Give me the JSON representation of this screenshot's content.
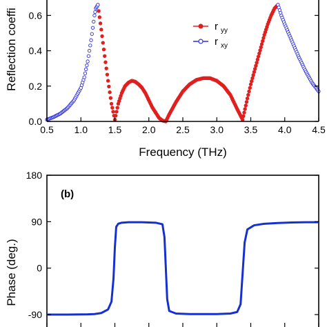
{
  "colors": {
    "ryy": "#e0201e",
    "rxy": "#2b2ee0",
    "phase": "#1530d0",
    "axis": "#000000"
  },
  "chart_data": [
    {
      "panel": "top",
      "type": "scatter",
      "title": "",
      "xlabel": "Frequency (THz)",
      "ylabel": "Reflection coeffi",
      "xlim": [
        0.5,
        4.5
      ],
      "ylim": [
        0.0,
        0.66
      ],
      "x_ticks": [
        "0.5",
        "1.0",
        "1.5",
        "2.0",
        "2.5",
        "3.0",
        "3.5",
        "4.0",
        "4.5"
      ],
      "y_ticks": [
        "0.0",
        "0.2",
        "0.4",
        "0.6"
      ],
      "legend_position": "right",
      "series": [
        {
          "name": "r",
          "subscript": "yy",
          "marker": "filled-circle",
          "x": [
            1.25,
            1.3,
            1.35,
            1.4,
            1.45,
            1.5,
            1.55,
            1.6,
            1.65,
            1.7,
            1.75,
            1.8,
            1.85,
            1.9,
            1.95,
            2.0,
            2.05,
            2.1,
            2.15,
            2.2,
            2.25,
            2.3,
            2.4,
            2.5,
            2.6,
            2.7,
            2.8,
            2.9,
            3.0,
            3.1,
            3.2,
            3.3,
            3.38,
            3.45,
            3.5,
            3.55,
            3.6,
            3.65,
            3.7,
            3.75,
            3.8,
            3.85,
            3.9
          ],
          "y": [
            0.66,
            0.52,
            0.37,
            0.23,
            0.1,
            0.01,
            0.1,
            0.16,
            0.2,
            0.22,
            0.23,
            0.225,
            0.21,
            0.19,
            0.16,
            0.12,
            0.08,
            0.05,
            0.02,
            0.005,
            0.0,
            0.04,
            0.11,
            0.17,
            0.21,
            0.235,
            0.245,
            0.245,
            0.23,
            0.2,
            0.15,
            0.07,
            0.01,
            0.13,
            0.21,
            0.28,
            0.35,
            0.42,
            0.49,
            0.55,
            0.6,
            0.64,
            0.66
          ]
        },
        {
          "name": "r",
          "subscript": "xy",
          "marker": "open-circle",
          "x": [
            0.5,
            0.6,
            0.7,
            0.8,
            0.9,
            1.0,
            1.05,
            1.1,
            1.15,
            1.2,
            1.22,
            1.25,
            3.9,
            3.95,
            4.0,
            4.1,
            4.2,
            4.3,
            4.4,
            4.5
          ],
          "y": [
            0.01,
            0.025,
            0.045,
            0.075,
            0.12,
            0.19,
            0.25,
            0.34,
            0.46,
            0.6,
            0.64,
            0.66,
            0.66,
            0.6,
            0.55,
            0.46,
            0.37,
            0.29,
            0.22,
            0.17
          ]
        }
      ]
    },
    {
      "panel": "bottom",
      "type": "line",
      "title": "",
      "annotation": "(b)",
      "xlabel": "",
      "ylabel": "Phase (deg.)",
      "xlim": [
        0.5,
        4.5
      ],
      "ylim": [
        -90,
        180
      ],
      "y_ticks": [
        "-90",
        "0",
        "90",
        "180"
      ],
      "series": [
        {
          "x": [
            0.5,
            0.8,
            1.1,
            1.2,
            1.3,
            1.4,
            1.45,
            1.48,
            1.5,
            1.52,
            1.55,
            1.6,
            1.7,
            1.9,
            2.1,
            2.2,
            2.23,
            2.25,
            2.27,
            2.3,
            2.4,
            2.6,
            2.8,
            3.0,
            3.2,
            3.3,
            3.35,
            3.38,
            3.41,
            3.45,
            3.55,
            3.7,
            3.9,
            4.1,
            4.3,
            4.5
          ],
          "y": [
            -90,
            -90,
            -89.5,
            -89,
            -87,
            -80,
            -65,
            -20,
            40,
            80,
            86,
            88,
            89,
            89,
            88,
            85,
            60,
            0,
            -60,
            -83,
            -88,
            -89,
            -89,
            -89,
            -88,
            -85,
            -70,
            -10,
            50,
            75,
            83,
            86,
            87.5,
            88.5,
            89,
            89
          ]
        }
      ]
    }
  ]
}
